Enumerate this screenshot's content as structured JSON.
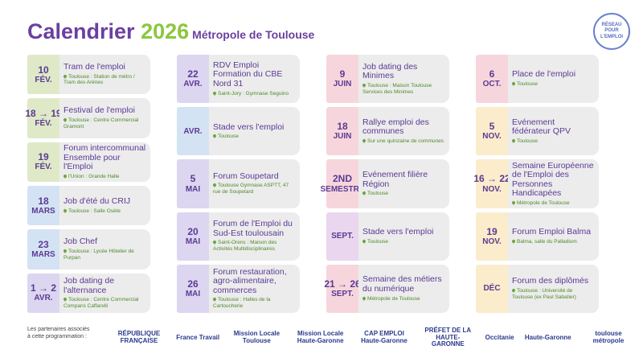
{
  "header": {
    "title": "Calendrier",
    "year": "2026",
    "subtitle": "Métropole de Toulouse",
    "logo": "RÉSEAU POUR L'EMPLOI"
  },
  "columns": [
    {
      "events": [
        {
          "day": "10",
          "month": "FÉV.",
          "color": "#dfe9c7",
          "title": "Tram de l'emploi",
          "place": "Toulouse : Station de métro / Tram des Arènes"
        },
        {
          "day": "18 → 19",
          "month": "FÉV.",
          "color": "#dfe9c7",
          "title": "Festival de l'emploi",
          "place": "Toulouse : Centre Commercial Gramont"
        },
        {
          "day": "19",
          "month": "FÉV.",
          "color": "#dfe9c7",
          "title": "Forum intercommunal Ensemble pour l'Emploi",
          "place": "l'Union : Grande Halle"
        },
        {
          "day": "18",
          "month": "MARS",
          "color": "#d4e3f3",
          "title": "Job d'été du CRIJ",
          "place": "Toulouse : Salle Osète"
        },
        {
          "day": "23",
          "month": "MARS",
          "color": "#d4e3f3",
          "title": "Job Chef",
          "place": "Toulouse : Lycée Hôtelier de Purpan"
        },
        {
          "day": "1 → 2",
          "month": "AVR.",
          "color": "#dcd6f0",
          "title": "Job dating de l'alternance",
          "place": "Toulouse : Centre Commercial Compans Caffarelli"
        }
      ]
    },
    {
      "events": [
        {
          "day": "22",
          "month": "AVR.",
          "color": "#dcd6f0",
          "title": "RDV Emploi Formation du CBE Nord 31",
          "place": "Saint-Jory : Gymnase Seguino"
        },
        {
          "month": "AVR.",
          "color": "#d4e3f3",
          "title": "Stade vers l'emploi",
          "place": "Toulouse"
        },
        {
          "day": "5",
          "month": "MAI",
          "color": "#dcd6f0",
          "title": "Forum Soupetard",
          "place": "Toulouse Gymnase ASPTT, 47 rue de Soupetard"
        },
        {
          "day": "20",
          "month": "MAI",
          "color": "#dcd6f0",
          "title": "Forum de l'Emploi du Sud-Est toulousain",
          "place": "Saint-Orens : Maison des Activités Multidisciplinaires"
        },
        {
          "day": "26",
          "month": "MAI",
          "color": "#dcd6f0",
          "title": "Forum restauration, agro-alimentaire, commerces",
          "place": "Toulouse : Halles de la Cartoucherie"
        }
      ]
    },
    {
      "events": [
        {
          "day": "9",
          "month": "JUIN",
          "color": "#f6d6dc",
          "title": "Job dating des Minimes",
          "place": "Toulouse : Maison Toulouse Services des Minimes"
        },
        {
          "day": "18",
          "month": "JUIN",
          "color": "#f6d6dc",
          "title": "Rallye emploi des communes",
          "place": "Sur une quinzaine de communes"
        },
        {
          "day": "2ND",
          "month": "SEMESTRE",
          "color": "#f6d6dc",
          "title": "Evénement filière Région",
          "place": "Toulouse"
        },
        {
          "month": "SEPT.",
          "color": "#ead6ee",
          "title": "Stade vers l'emploi",
          "place": "Toulouse"
        },
        {
          "day": "21 → 26",
          "month": "SEPT.",
          "color": "#f6d6dc",
          "title": "Semaine des métiers du numérique",
          "place": "Métropole de Toulouse"
        }
      ]
    },
    {
      "events": [
        {
          "day": "6",
          "month": "OCT.",
          "color": "#f6d6dc",
          "title": "Place de l'emploi",
          "place": "Toulouse"
        },
        {
          "day": "5",
          "month": "NOV.",
          "color": "#fbeccb",
          "title": "Evénement fédérateur QPV",
          "place": "Toulouse"
        },
        {
          "day": "16 → 22",
          "month": "NOV.",
          "color": "#fbeccb",
          "title": "Semaine Européenne de l'Emploi des Personnes Handicapées",
          "place": "Métropole de Toulouse"
        },
        {
          "day": "19",
          "month": "NOV.",
          "color": "#fbeccb",
          "title": "Forum Emploi Balma",
          "place": "Balma, salle du Palladium"
        },
        {
          "month": "DÉC",
          "color": "#fbeccb",
          "title": "Forum des diplômés",
          "place": "Toulouse : Université de Toulouse (ex Paul Sabatier)"
        }
      ]
    }
  ],
  "footer": {
    "intro": "Les partenaires associés à cette programmation :",
    "partners": [
      "RÉPUBLIQUE FRANÇAISE",
      "France Travail",
      "Mission Locale Toulouse",
      "Mission Locale Haute-Garonne",
      "CAP EMPLOI Haute-Garonne",
      "PRÉFET DE LA HAUTE-GARONNE",
      "Occitanie",
      "Haute-Garonne",
      "toulouse métropole"
    ]
  }
}
